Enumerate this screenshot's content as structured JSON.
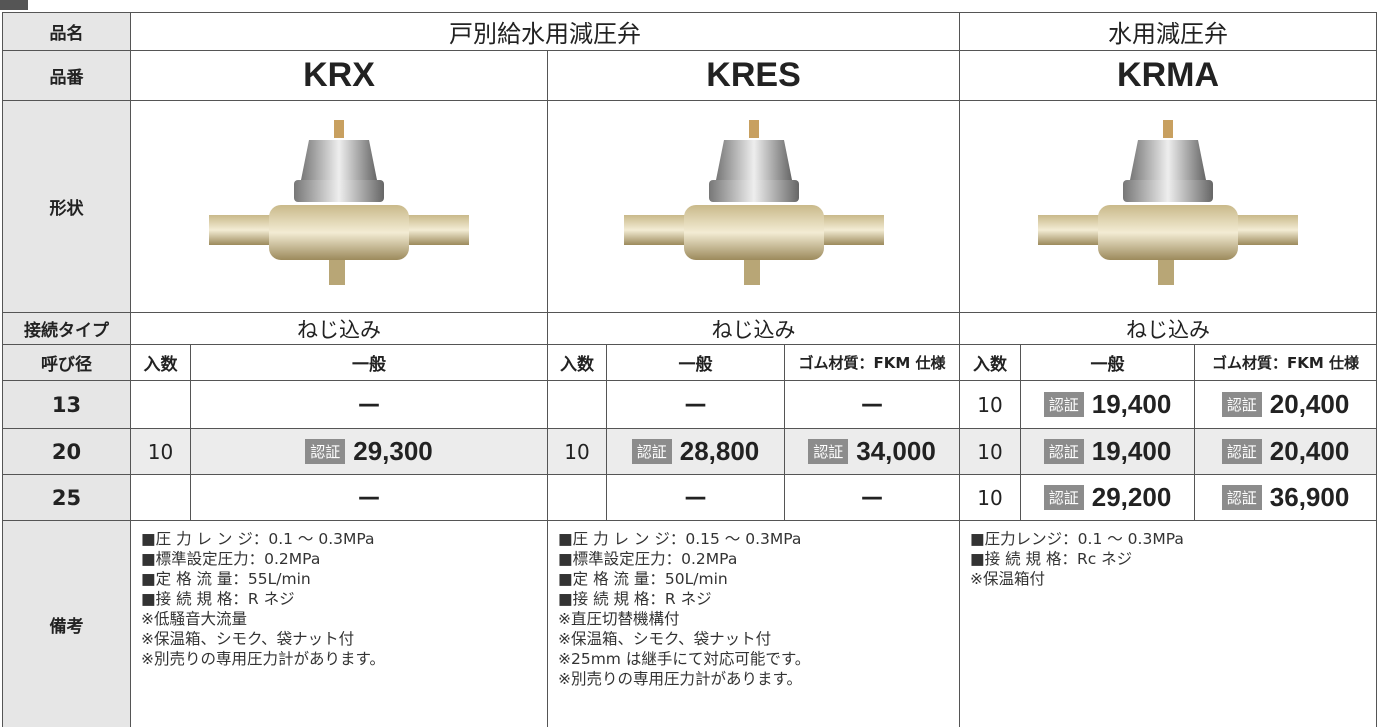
{
  "table": {
    "product_name": {
      "label": "品名",
      "groups": [
        "戸別給水用減圧弁",
        "水用減圧弁"
      ]
    },
    "model": {
      "label": "品番",
      "values": [
        "KRX",
        "KRES",
        "KRMA"
      ]
    },
    "shape": {
      "label": "形状"
    },
    "connection": {
      "label": "接続タイプ",
      "values": [
        "ねじ込み",
        "ねじ込み",
        "ねじ込み"
      ]
    },
    "header": {
      "label": "呼び径",
      "columns": [
        "入数",
        "一般",
        "入数",
        "一般",
        "ゴム材質：FKM 仕様",
        "入数",
        "一般",
        "ゴム材質：FKM 仕様"
      ]
    },
    "rows": [
      {
        "size": "13",
        "cells": [
          null,
          "—",
          null,
          "—",
          "—",
          "10",
          {
            "badge": "認証",
            "price": "19,400"
          },
          {
            "badge": "認証",
            "price": "20,400"
          }
        ]
      },
      {
        "size": "20",
        "cells": [
          "10",
          {
            "badge": "認証",
            "price": "29,300"
          },
          "10",
          {
            "badge": "認証",
            "price": "28,800"
          },
          {
            "badge": "認証",
            "price": "34,000"
          },
          "10",
          {
            "badge": "認証",
            "price": "19,400"
          },
          {
            "badge": "認証",
            "price": "20,400"
          }
        ]
      },
      {
        "size": "25",
        "cells": [
          null,
          "—",
          null,
          "—",
          "—",
          "10",
          {
            "badge": "認証",
            "price": "29,200"
          },
          {
            "badge": "認証",
            "price": "36,900"
          }
        ]
      }
    ],
    "notes": {
      "label": "備考",
      "values": [
        [
          "■圧 力 レ ン ジ：0.1 ～ 0.3MPa",
          "■標準設定圧力：0.2MPa",
          "■定 格 流 量：55L/min",
          "■接 続 規 格：R ネジ",
          "※低騒音大流量",
          "※保温箱、シモク、袋ナット付",
          "※別売りの専用圧力計があります。"
        ],
        [
          "■圧 力 レ ン ジ：0.15 ～ 0.3MPa",
          "■標準設定圧力：0.2MPa",
          "■定 格 流 量：50L/min",
          "■接 続 規 格：R ネジ",
          "※直圧切替機構付",
          "※保温箱、シモク、袋ナット付",
          "※25mm は継手にて対応可能です。",
          "※別売りの専用圧力計があります。"
        ],
        [
          "■圧力レンジ：0.1 ～ 0.3MPa",
          "■接 続 規 格：Rc ネジ",
          "※保温箱付"
        ]
      ]
    }
  }
}
